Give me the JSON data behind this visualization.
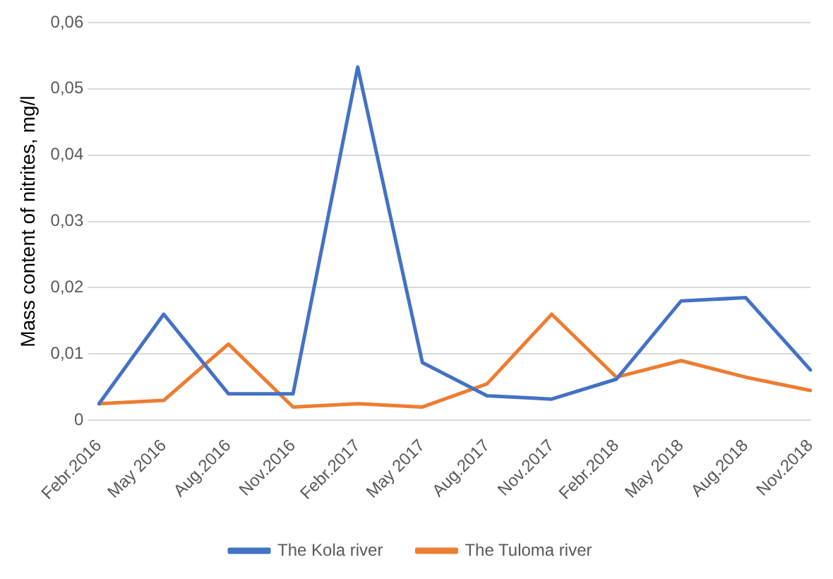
{
  "chart_data": {
    "type": "line",
    "ylabel": "Mass content of nitrites, mg/l",
    "categories": [
      "Febr.2016",
      "May 2016",
      "Aug.2016",
      "Nov.2016",
      "Febr.2017",
      "May 2017",
      "Aug.2017",
      "Nov.2017",
      "Febr.2018",
      "May 2018",
      "Aug.2018",
      "Nov.2018"
    ],
    "series": [
      {
        "name": "The Kola river",
        "color": "#4472c4",
        "values": [
          0.0025,
          0.016,
          0.004,
          0.004,
          0.0533,
          0.0087,
          0.0037,
          0.0032,
          0.0062,
          0.018,
          0.0185,
          0.0076
        ]
      },
      {
        "name": "The Tuloma river",
        "color": "#ed7d31",
        "values": [
          0.0025,
          0.003,
          0.0115,
          0.002,
          0.0025,
          0.002,
          0.0055,
          0.016,
          0.0065,
          0.009,
          0.0065,
          0.0045
        ]
      }
    ],
    "ylim": [
      0,
      0.06
    ],
    "yticks": [
      {
        "value": 0,
        "label": "0"
      },
      {
        "value": 0.01,
        "label": "0,01"
      },
      {
        "value": 0.02,
        "label": "0,02"
      },
      {
        "value": 0.03,
        "label": "0,03"
      },
      {
        "value": 0.04,
        "label": "0,04"
      },
      {
        "value": 0.05,
        "label": "0,05"
      },
      {
        "value": 0.06,
        "label": "0,06"
      }
    ],
    "grid": "y",
    "legend": "bottom",
    "marker": "none",
    "line_style": "solid"
  }
}
